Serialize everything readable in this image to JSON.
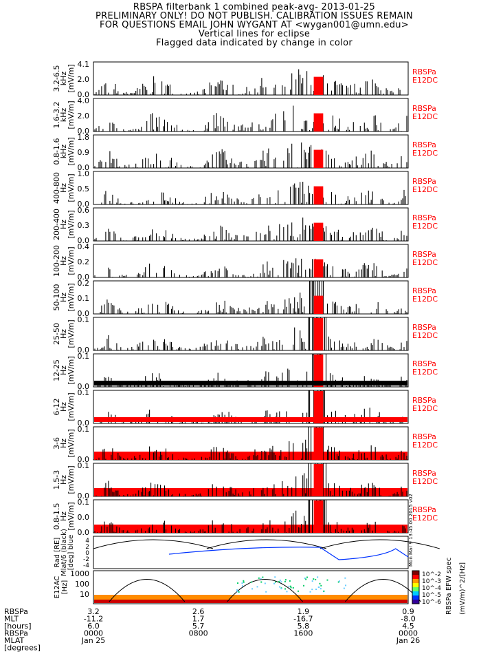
{
  "header": {
    "line1": "RBSPA filterbank 1 combined peak-avg- 2013-01-25",
    "line2": "PRELIMINARY ONLY! DO NOT PUBLISH. CALIBRATION ISSUES REMAIN",
    "line3": "FOR QUESTIONS EMAIL JOHN WYGANT AT <wygan001@umn.edu>",
    "line4": "Vertical lines for eclipse",
    "line5": "Flagged data indicated by change in color"
  },
  "colors": {
    "trace": "#000000",
    "flag": "#ff0000",
    "label": "#ff0000",
    "line": "#0033ff"
  },
  "chart_data": {
    "type": "line",
    "panels": [
      {
        "band": "3.2-6.5",
        "unit": "kHz",
        "ylabel": "[mV/m]",
        "ylim": [
          0,
          4.1
        ],
        "ticks": [
          "4.1",
          "2.0",
          "0.0"
        ],
        "legend": [
          "RBSPa",
          "E12DC"
        ]
      },
      {
        "band": "1.6-3.2",
        "unit": "kHz",
        "ylabel": "[mV/m]",
        "ylim": [
          0,
          4.0
        ],
        "ticks": [
          "4.0",
          "2.0",
          "0.0"
        ],
        "legend": [
          "RBSPa",
          "E12DC"
        ]
      },
      {
        "band": "0.8-1.6",
        "unit": "kHz",
        "ylabel": "[mV/m]",
        "ylim": [
          0,
          1.8
        ],
        "ticks": [
          "1.8",
          "0.9",
          "0.0"
        ],
        "legend": [
          "RBSPa",
          "E12DC"
        ]
      },
      {
        "band": "400-800",
        "unit": "Hz",
        "ylabel": "[mV/m]",
        "ylim": [
          0,
          1.0
        ],
        "ticks": [
          "1.0",
          "0.5",
          "0.0"
        ],
        "legend": [
          "RBSPa",
          "E12DC"
        ]
      },
      {
        "band": "200-400",
        "unit": "Hz",
        "ylabel": "[mV/m]",
        "ylim": [
          0,
          0.6
        ],
        "ticks": [
          "0.6",
          "0.3",
          "0.0"
        ],
        "legend": [
          "RBSPa",
          "E12DC"
        ]
      },
      {
        "band": "100-200",
        "unit": "Hz",
        "ylabel": "[mV/m]",
        "ylim": [
          0,
          0.4
        ],
        "ticks": [
          "0.4",
          "0.2",
          "0.0"
        ],
        "legend": [
          "RBSPa",
          "E12DC"
        ]
      },
      {
        "band": "50-100",
        "unit": "Hz",
        "ylabel": "[mV/m]",
        "ylim": [
          0,
          0.2
        ],
        "ticks": [
          "0.2",
          "0.1",
          "0.0"
        ],
        "legend": [
          "RBSPa",
          "E12DC"
        ]
      },
      {
        "band": "25-50",
        "unit": "Hz",
        "ylabel": "[mV/m]",
        "ylim": [
          0,
          0.1
        ],
        "ticks": [
          "0.1",
          "0.0"
        ],
        "legend": [
          "RBSPa",
          "E12DC"
        ]
      },
      {
        "band": "12-25",
        "unit": "Hz",
        "ylabel": "[mV/m]",
        "ylim": [
          0,
          0.1
        ],
        "ticks": [
          "0.1",
          "0.0"
        ],
        "legend": [
          "RBSPa",
          "E12DC"
        ]
      },
      {
        "band": "6-12",
        "unit": "Hz",
        "ylabel": "[mV/m]",
        "ylim": [
          0,
          0.1
        ],
        "ticks": [
          "0.1",
          "0.0"
        ],
        "legend": [
          "RBSPa",
          "E12DC"
        ]
      },
      {
        "band": "3-6",
        "unit": "Hz",
        "ylabel": "[mV/m]",
        "ylim": [
          0,
          0.1
        ],
        "ticks": [
          "0.1",
          "0.0"
        ],
        "legend": [
          "RBSPa",
          "E12DC"
        ]
      },
      {
        "band": "1.5-3",
        "unit": "Hz",
        "ylabel": "[mV/m]",
        "ylim": [
          0,
          0.1
        ],
        "ticks": [
          "0.1",
          "0.0"
        ],
        "legend": [
          "RBSPa",
          "E12DC"
        ]
      },
      {
        "band": "0.8-1.5",
        "unit": "Hz",
        "ylabel": "[mV/m]",
        "ylim": [
          0,
          0.1
        ],
        "ticks": [
          "0.1",
          "0.0",
          "0.0"
        ],
        "legend": [
          "RBSPa",
          "E12DC"
        ]
      }
    ],
    "position_panel": {
      "ylabel_lines": [
        "Rad [RE]",
        "Mlat/6 (black)",
        "[deg] blue"
      ],
      "ticks": [
        "4",
        "2",
        "0",
        "-2",
        "-4"
      ]
    },
    "spectrogram": {
      "ylabel_lines": [
        "E12AC",
        "[Hz]"
      ],
      "ticks": [
        "1000",
        "100",
        "10"
      ],
      "colorbar_ticks": [
        "10^-2",
        "10^-3",
        "10^-4",
        "10^-5",
        "10^-6"
      ],
      "colorbar_label": "RBSPa EFW spec",
      "colorbar_unit": "(mV/m)^2/[Hz]",
      "timestamp": "Mon Mar 9 13:45:00 2015 v02"
    },
    "xaxis": {
      "labels": [
        "RBSPa",
        "MLT",
        "[hours]",
        "RBSPa",
        "MLAT",
        "[degrees]"
      ],
      "columns": [
        {
          "v": [
            "3.2",
            "-11.2",
            "6.0",
            "0000",
            "Jan 25"
          ]
        },
        {
          "v": [
            "2.6",
            "1.7",
            "5.7",
            "0800",
            ""
          ]
        },
        {
          "v": [
            "1.9",
            "-16.7",
            "5.8",
            "1600",
            ""
          ]
        },
        {
          "v": [
            "0.9",
            "-8.0",
            "4.5",
            "0000",
            "Jan 26"
          ]
        }
      ]
    }
  }
}
